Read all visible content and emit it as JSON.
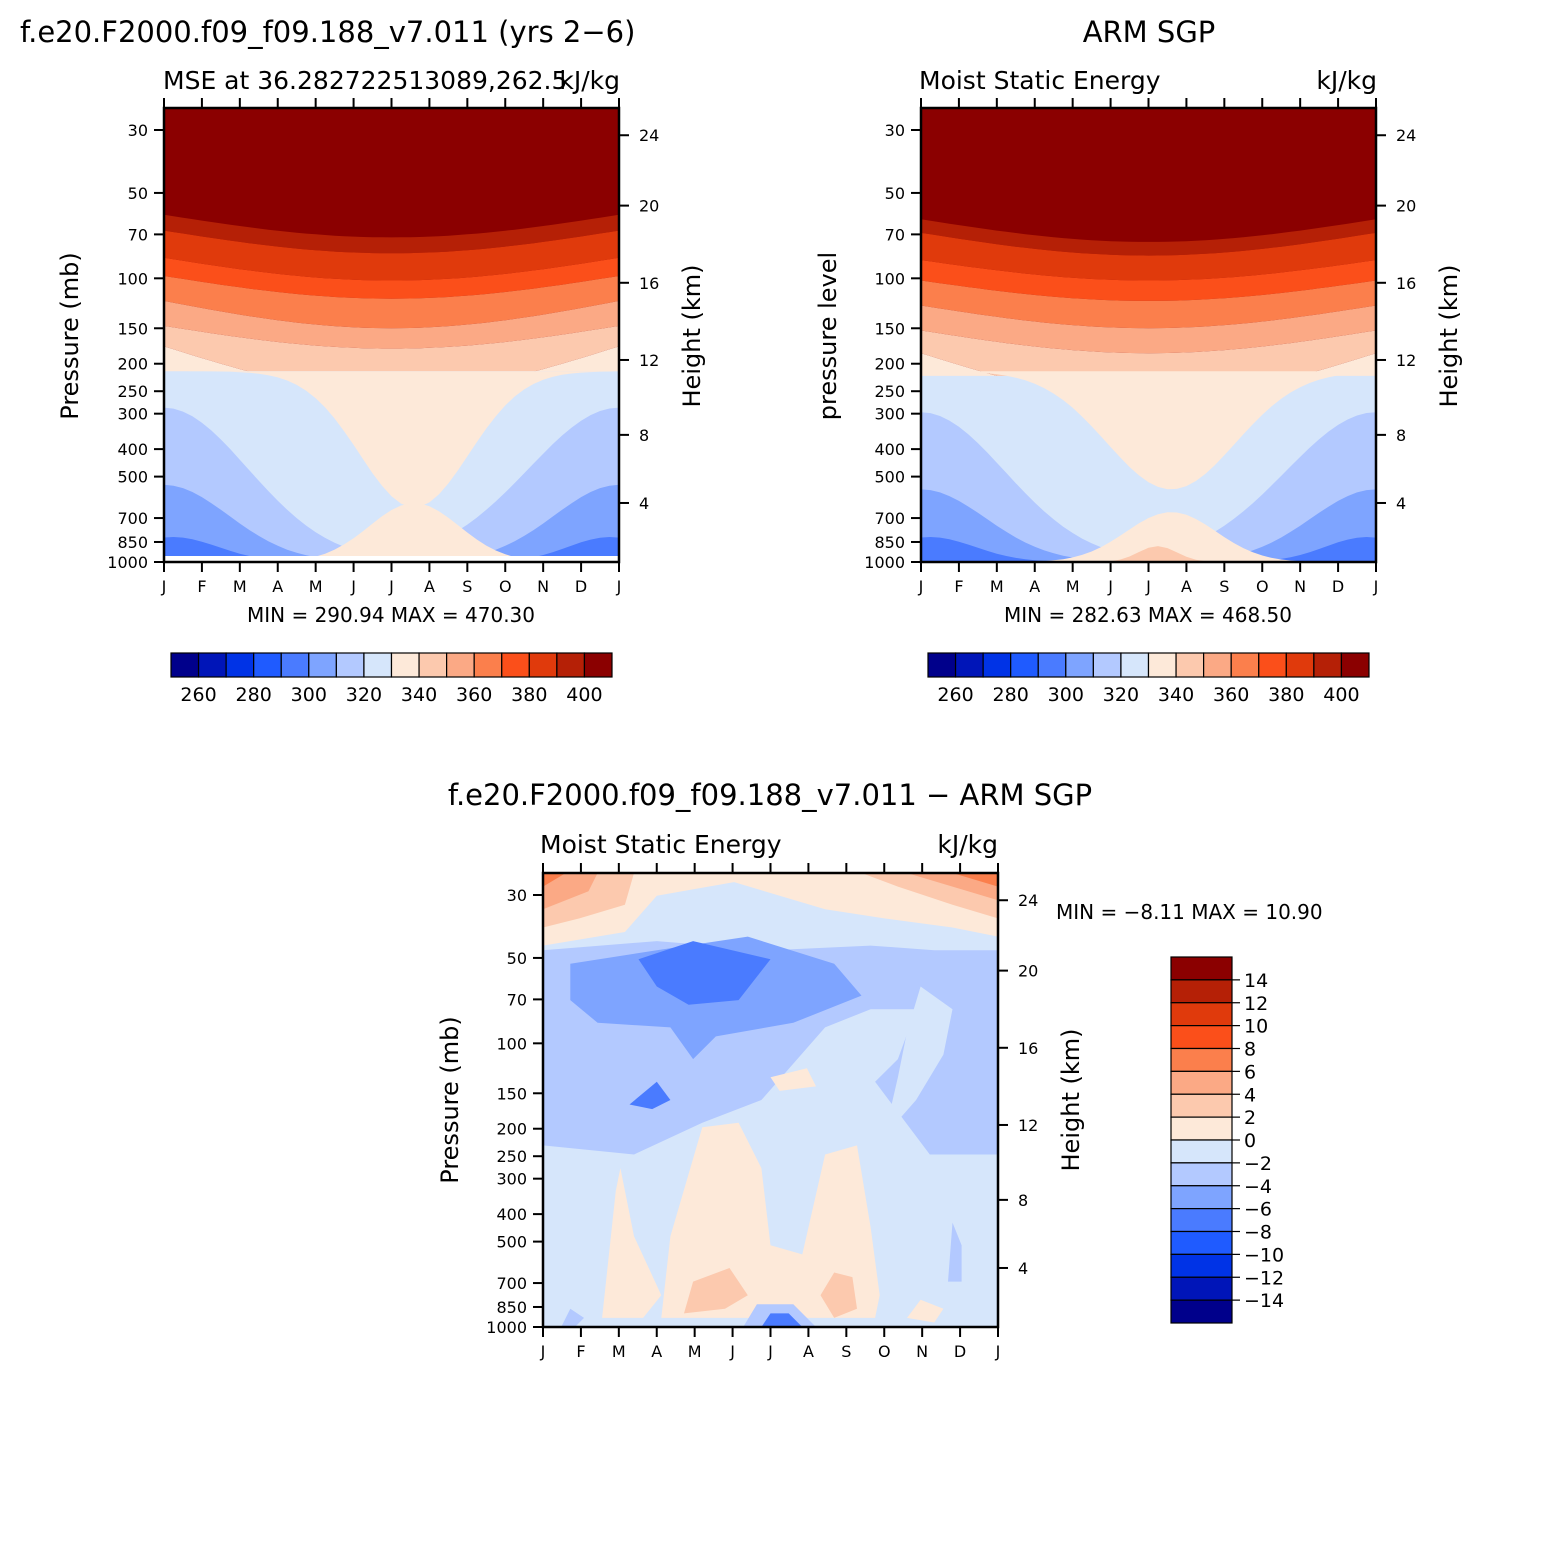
{
  "colors": {
    "mse_palette": [
      "#00008b",
      "#0015b8",
      "#0033e6",
      "#1f5bff",
      "#4a7bff",
      "#7ea4ff",
      "#b3c9ff",
      "#d6e6fb",
      "#fde9d9",
      "#fcc9ae",
      "#fba985",
      "#fb7f4c",
      "#fb4f1a",
      "#e03a0c",
      "#b52006",
      "#8b0000"
    ],
    "diff_palette": [
      "#00008b",
      "#0015b8",
      "#0033e6",
      "#1f5bff",
      "#4a7bff",
      "#7ea4ff",
      "#b3c9ff",
      "#d6e6fb",
      "#fde9d9",
      "#fcc9ae",
      "#fba985",
      "#fb7f4c",
      "#fb4f1a",
      "#e03a0c",
      "#b52006",
      "#8b0000"
    ]
  },
  "panels": {
    "model": {
      "title": "f.e20.F2000.f09_f09.188_v7.011 (yrs 2−6)",
      "left_label": "MSE at 36.282722513089,262.5",
      "right_label": "kJ/kg",
      "ylabel": "Pressure (mb)",
      "ylabel_right": "Height (km)",
      "stats": "MIN = 290.94 MAX = 470.30",
      "colorbar_labels": [
        "260",
        "280",
        "300",
        "320",
        "340",
        "360",
        "380",
        "400"
      ]
    },
    "obs": {
      "title": "ARM SGP",
      "left_label": "Moist Static Energy",
      "right_label": "kJ/kg",
      "ylabel": "pressure level",
      "ylabel_right": "Height (km)",
      "stats": "MIN = 282.63 MAX = 468.50",
      "colorbar_labels": [
        "260",
        "280",
        "300",
        "320",
        "340",
        "360",
        "380",
        "400"
      ]
    },
    "diff": {
      "title": "f.e20.F2000.f09_f09.188_v7.011 − ARM SGP",
      "left_label": "Moist Static Energy",
      "right_label": "kJ/kg",
      "ylabel": "Pressure (mb)",
      "ylabel_right": "Height (km)",
      "stats": "MIN =   −8.11 MAX =   10.90",
      "colorbar_labels": [
        "14",
        "12",
        "10",
        "8",
        "6",
        "4",
        "2",
        "0",
        "−2",
        "−4",
        "−6",
        "−8",
        "−10",
        "−12",
        "−14"
      ]
    }
  },
  "chart_data": [
    {
      "type": "heatmap",
      "title": "f.e20.F2000.f09_f09.188_v7.011 (yrs 2−6)",
      "subtitle": "MSE at 36.282722513089,262.5",
      "units": "kJ/kg",
      "ylabel": "Pressure (mb)",
      "ylabel_right": "Height (km)",
      "x_ticks": [
        "J",
        "F",
        "M",
        "A",
        "M",
        "J",
        "J",
        "A",
        "S",
        "O",
        "N",
        "D",
        "J"
      ],
      "y_ticks": [
        "30",
        "50",
        "70",
        "100",
        "150",
        "200",
        "250",
        "300",
        "400",
        "500",
        "700",
        "850",
        "1000"
      ],
      "y_ticks_right": [
        "24",
        "20",
        "16",
        "12",
        "8",
        "4"
      ],
      "y_scale": "log-pressure",
      "min": 290.94,
      "max": 470.3,
      "levels": [
        260,
        270,
        280,
        290,
        300,
        310,
        320,
        330,
        340,
        350,
        360,
        370,
        380,
        390,
        400
      ]
    },
    {
      "type": "heatmap",
      "title": "ARM SGP",
      "subtitle": "Moist Static Energy",
      "units": "kJ/kg",
      "ylabel": "pressure level",
      "ylabel_right": "Height (km)",
      "x_ticks": [
        "J",
        "F",
        "M",
        "A",
        "M",
        "J",
        "J",
        "A",
        "S",
        "O",
        "N",
        "D",
        "J"
      ],
      "y_ticks": [
        "30",
        "50",
        "70",
        "100",
        "150",
        "200",
        "250",
        "300",
        "400",
        "500",
        "700",
        "850",
        "1000"
      ],
      "y_ticks_right": [
        "24",
        "20",
        "16",
        "12",
        "8",
        "4"
      ],
      "y_scale": "log-pressure",
      "min": 282.63,
      "max": 468.5,
      "levels": [
        260,
        270,
        280,
        290,
        300,
        310,
        320,
        330,
        340,
        350,
        360,
        370,
        380,
        390,
        400
      ]
    },
    {
      "type": "heatmap",
      "title": "f.e20.F2000.f09_f09.188_v7.011 − ARM SGP",
      "subtitle": "Moist Static Energy",
      "units": "kJ/kg",
      "ylabel": "Pressure (mb)",
      "ylabel_right": "Height (km)",
      "x_ticks": [
        "J",
        "F",
        "M",
        "A",
        "M",
        "J",
        "J",
        "A",
        "S",
        "O",
        "N",
        "D",
        "J"
      ],
      "y_ticks": [
        "30",
        "50",
        "70",
        "100",
        "150",
        "200",
        "250",
        "300",
        "400",
        "500",
        "700",
        "850",
        "1000"
      ],
      "y_ticks_right": [
        "24",
        "20",
        "16",
        "12",
        "8",
        "4"
      ],
      "y_scale": "log-pressure",
      "min": -8.11,
      "max": 10.9,
      "levels": [
        -14,
        -12,
        -10,
        -8,
        -6,
        -4,
        -2,
        0,
        2,
        4,
        6,
        8,
        10,
        12,
        14
      ]
    }
  ]
}
